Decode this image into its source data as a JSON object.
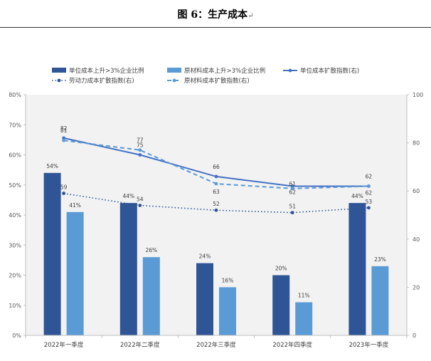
{
  "figure": {
    "title": "图 6：生产成本",
    "title_mark": "↵"
  },
  "chart_data": {
    "type": "bar",
    "categories": [
      "2022年一季度",
      "2022年二季度",
      "2022年三季度",
      "2022年四季度",
      "2023年一季度"
    ],
    "series": [
      {
        "name": "单位成本上升>3%企业比例",
        "kind": "bar",
        "axis": "left",
        "color": "#2f5597",
        "values": [
          54,
          44,
          24,
          20,
          44
        ],
        "labels": [
          "54%",
          "44%",
          "24%",
          "20%",
          "44%"
        ]
      },
      {
        "name": "原材料成本上升>3%企业比例",
        "kind": "bar",
        "axis": "left",
        "color": "#5b9bd5",
        "values": [
          41,
          26,
          16,
          11,
          23
        ],
        "labels": [
          "41%",
          "26%",
          "16%",
          "11%",
          "23%"
        ]
      },
      {
        "name": "单位成本扩散指数(右)",
        "kind": "line",
        "style": "solid",
        "axis": "right",
        "color": "#4472c4",
        "values": [
          82,
          75,
          66,
          62,
          62
        ],
        "labels": [
          "82",
          "75",
          "66",
          "62",
          "62"
        ]
      },
      {
        "name": "劳动力成本扩散指数(右)",
        "kind": "line",
        "style": "dotted",
        "axis": "right",
        "color": "#2f5597",
        "values": [
          59,
          54,
          52,
          51,
          53
        ],
        "labels": [
          "59",
          "54",
          "52",
          "51",
          "53"
        ]
      },
      {
        "name": "原材料成本扩散指数(右)",
        "kind": "line",
        "style": "dashed",
        "axis": "right",
        "color": "#5b9bd5",
        "values": [
          81,
          77,
          63,
          61,
          62
        ],
        "labels": [
          "81",
          "77",
          "63",
          "61",
          "62"
        ]
      }
    ],
    "y_left": {
      "range": [
        0,
        80
      ],
      "ticks": [
        "0%",
        "10%",
        "20%",
        "30%",
        "40%",
        "50%",
        "60%",
        "70%",
        "80%"
      ]
    },
    "y_right": {
      "range": [
        0,
        100
      ],
      "ticks": [
        "0",
        "20",
        "40",
        "60",
        "80",
        "100"
      ]
    },
    "grid": false,
    "legend_position": "top"
  }
}
